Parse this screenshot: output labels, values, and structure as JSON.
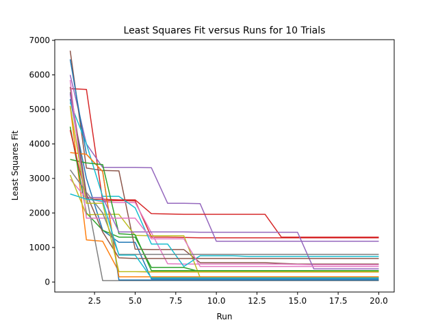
{
  "chart_data": {
    "type": "line",
    "title": "Least Squares Fit versus Runs for 10 Trials",
    "xlabel": "Run",
    "ylabel": "Least Squares Fit",
    "xlim": [
      0.05,
      20.95
    ],
    "ylim": [
      -290,
      7020
    ],
    "xticks": [
      2.5,
      5.0,
      7.5,
      10.0,
      12.5,
      15.0,
      17.5,
      20.0
    ],
    "xtick_labels": [
      "2.5",
      "5.0",
      "7.5",
      "10.0",
      "12.5",
      "15.0",
      "17.5",
      "20.0"
    ],
    "yticks": [
      0,
      1000,
      2000,
      3000,
      4000,
      5000,
      6000,
      7000
    ],
    "ytick_labels": [
      "0",
      "1000",
      "2000",
      "3000",
      "4000",
      "5000",
      "6000",
      "7000"
    ],
    "grid": false,
    "legend": "none",
    "x": [
      1,
      2,
      3,
      4,
      5,
      6,
      7,
      8,
      9,
      10,
      11,
      12,
      13,
      14,
      15,
      16,
      17,
      18,
      19,
      20
    ],
    "series": [
      {
        "color": "#1f77b4",
        "values": [
          5300,
          3000,
          1500,
          1150,
          1150,
          90,
          90,
          90,
          90,
          90,
          90,
          90,
          90,
          90,
          90,
          90,
          90,
          90,
          90,
          90
        ]
      },
      {
        "color": "#ff7f0e",
        "values": [
          5100,
          1220,
          1180,
          300,
          300,
          290,
          290,
          290,
          290,
          290,
          290,
          290,
          290,
          290,
          290,
          290,
          290,
          290,
          290,
          290
        ]
      },
      {
        "color": "#2ca02c",
        "values": [
          4500,
          2000,
          1500,
          1300,
          1300,
          420,
          420,
          420,
          300,
          300,
          300,
          300,
          300,
          300,
          300,
          300,
          300,
          300,
          300,
          300
        ]
      },
      {
        "color": "#d62728",
        "values": [
          5600,
          5580,
          2350,
          2360,
          2350,
          1300,
          1300,
          1290,
          1280,
          1280,
          1280,
          1280,
          1280,
          1280,
          1280,
          1280,
          1280,
          1280,
          1280,
          1280
        ]
      },
      {
        "color": "#9467bd",
        "values": [
          6000,
          4000,
          3320,
          3320,
          3320,
          3310,
          2280,
          2280,
          2270,
          1180,
          1180,
          1180,
          1180,
          1180,
          1180,
          1180,
          1180,
          1180,
          1180,
          1180
        ]
      },
      {
        "color": "#8c564b",
        "values": [
          6700,
          3300,
          3230,
          3220,
          950,
          940,
          940,
          940,
          560,
          560,
          560,
          560,
          560,
          540,
          520,
          520,
          520,
          520,
          520,
          520
        ]
      },
      {
        "color": "#e377c2",
        "values": [
          2980,
          2420,
          2320,
          2300,
          2300,
          1430,
          530,
          520,
          520,
          520,
          520,
          520,
          520,
          520,
          510,
          500,
          500,
          500,
          500,
          500
        ]
      },
      {
        "color": "#7f7f7f",
        "values": [
          5500,
          2500,
          40,
          40,
          40,
          40,
          40,
          40,
          40,
          40,
          40,
          40,
          40,
          40,
          40,
          40,
          40,
          40,
          40,
          40
        ]
      },
      {
        "color": "#bcbd22",
        "values": [
          3100,
          1950,
          1960,
          1960,
          1350,
          1340,
          1340,
          1340,
          130,
          130,
          130,
          130,
          130,
          130,
          130,
          130,
          130,
          130,
          130,
          130
        ]
      },
      {
        "color": "#17becf",
        "values": [
          5200,
          4000,
          2480,
          2480,
          2150,
          1100,
          1100,
          450,
          760,
          760,
          760,
          740,
          740,
          740,
          740,
          740,
          740,
          740,
          740,
          740
        ]
      },
      {
        "color": "#1f77b4",
        "values": [
          6450,
          3700,
          3200,
          60,
          60,
          60,
          60,
          60,
          60,
          60,
          60,
          60,
          60,
          60,
          60,
          60,
          60,
          60,
          60,
          60
        ]
      },
      {
        "color": "#ff7f0e",
        "values": [
          3750,
          3700,
          3200,
          150,
          150,
          150,
          150,
          150,
          150,
          150,
          150,
          150,
          150,
          150,
          150,
          150,
          150,
          150,
          150,
          150
        ]
      },
      {
        "color": "#2ca02c",
        "values": [
          3550,
          3450,
          3400,
          1400,
          1370,
          330,
          330,
          330,
          330,
          330,
          330,
          330,
          330,
          330,
          330,
          330,
          330,
          330,
          330,
          330
        ]
      },
      {
        "color": "#d62728",
        "values": [
          4400,
          2400,
          2400,
          2380,
          2380,
          1980,
          1970,
          1960,
          1960,
          1960,
          1960,
          1960,
          1960,
          1300,
          1300,
          1300,
          1300,
          1300,
          1300,
          1300
        ]
      },
      {
        "color": "#9467bd",
        "values": [
          5450,
          2450,
          2450,
          1450,
          1450,
          1450,
          1450,
          1450,
          1440,
          1440,
          1440,
          1440,
          1440,
          1440,
          1440,
          380,
          380,
          380,
          380,
          380
        ]
      },
      {
        "color": "#8c564b",
        "values": [
          5650,
          2550,
          1450,
          700,
          680,
          680,
          680,
          680,
          680,
          680,
          680,
          680,
          680,
          680,
          680,
          680,
          680,
          680,
          680,
          680
        ]
      },
      {
        "color": "#e377c2",
        "values": [
          5850,
          1850,
          1850,
          1850,
          1850,
          1250,
          1250,
          1250,
          450,
          450,
          450,
          450,
          450,
          450,
          450,
          450,
          450,
          450,
          450,
          450
        ]
      },
      {
        "color": "#7f7f7f",
        "values": [
          3250,
          2600,
          2000,
          800,
          800,
          800,
          800,
          800,
          800,
          800,
          800,
          800,
          800,
          800,
          800,
          800,
          800,
          800,
          800,
          800
        ]
      },
      {
        "color": "#bcbd22",
        "values": [
          5100,
          2280,
          2280,
          300,
          300,
          300,
          300,
          300,
          300,
          300,
          300,
          300,
          300,
          300,
          300,
          300,
          300,
          300,
          300,
          300
        ]
      },
      {
        "color": "#17becf",
        "values": [
          2550,
          2400,
          2350,
          780,
          780,
          120,
          120,
          120,
          120,
          120,
          120,
          120,
          120,
          120,
          120,
          120,
          120,
          120,
          120,
          120
        ]
      }
    ]
  }
}
